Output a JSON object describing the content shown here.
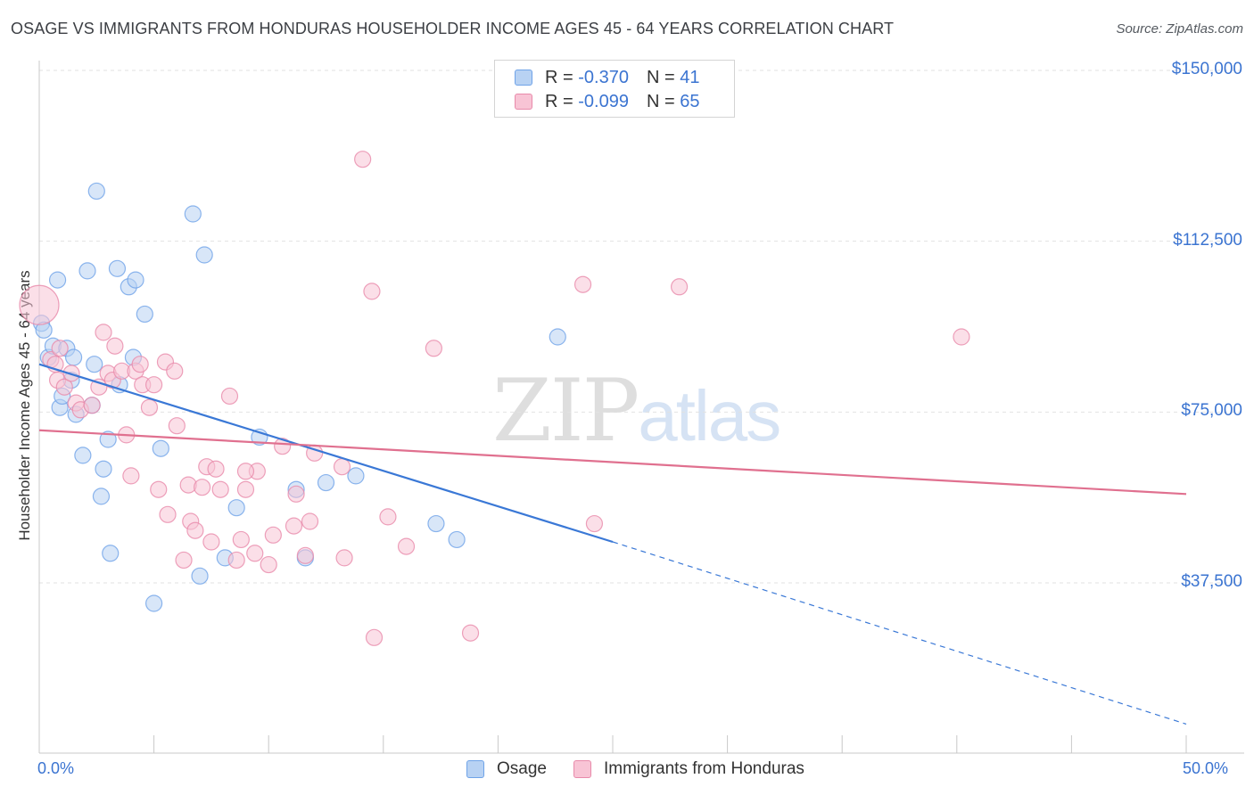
{
  "title": "OSAGE VS IMMIGRANTS FROM HONDURAS HOUSEHOLDER INCOME AGES 45 - 64 YEARS CORRELATION CHART",
  "source": "Source: ZipAtlas.com",
  "watermark": {
    "zip": "ZIP",
    "atlas": "atlas"
  },
  "legend": {
    "rows": [
      {
        "r_label": "R =",
        "r_value": "-0.370",
        "n_label": "N =",
        "n_value": "41",
        "color": "#6fa3e8",
        "fill": "#b8d2f3"
      },
      {
        "r_label": "R =",
        "r_value": "-0.099",
        "n_label": "N =",
        "n_value": "65",
        "color": "#e88aaa",
        "fill": "#f8c4d5"
      }
    ]
  },
  "bottom_legend": [
    "Osage",
    "Immigrants from Honduras"
  ],
  "chart_data": {
    "type": "scatter",
    "title": "OSAGE VS IMMIGRANTS FROM HONDURAS HOUSEHOLDER INCOME AGES 45 - 64 YEARS CORRELATION CHART",
    "xlabel": "",
    "ylabel": "Householder Income Ages 45 - 64 years",
    "xlim": [
      0,
      50
    ],
    "ylim": [
      0,
      155000
    ],
    "x_tick_labels": [
      "0.0%",
      "50.0%"
    ],
    "y_ticks": [
      37500,
      75000,
      112500,
      150000
    ],
    "y_tick_labels": [
      "$37,500",
      "$75,000",
      "$112,500",
      "$150,000"
    ],
    "grid": true,
    "legend_position": "top-center",
    "series": [
      {
        "name": "Osage",
        "color": "#6fa3e8",
        "fill": "#b8d2f3",
        "points": [
          [
            0.1,
            94500
          ],
          [
            0.2,
            93000
          ],
          [
            0.4,
            87000
          ],
          [
            0.6,
            89500
          ],
          [
            0.8,
            104000
          ],
          [
            0.9,
            76000
          ],
          [
            1.0,
            78500
          ],
          [
            1.2,
            89000
          ],
          [
            1.4,
            82000
          ],
          [
            1.5,
            87000
          ],
          [
            1.6,
            74500
          ],
          [
            1.9,
            65500
          ],
          [
            2.1,
            106000
          ],
          [
            2.3,
            76500
          ],
          [
            2.4,
            85500
          ],
          [
            2.5,
            123500
          ],
          [
            2.7,
            56500
          ],
          [
            2.8,
            62500
          ],
          [
            3.0,
            69000
          ],
          [
            3.1,
            44000
          ],
          [
            3.4,
            106500
          ],
          [
            3.5,
            81000
          ],
          [
            3.9,
            102500
          ],
          [
            4.1,
            87000
          ],
          [
            4.2,
            104000
          ],
          [
            4.6,
            96500
          ],
          [
            5.0,
            33000
          ],
          [
            5.3,
            67000
          ],
          [
            6.7,
            118500
          ],
          [
            7.0,
            39000
          ],
          [
            7.2,
            109500
          ],
          [
            8.1,
            43000
          ],
          [
            8.6,
            54000
          ],
          [
            9.6,
            69500
          ],
          [
            11.2,
            58000
          ],
          [
            11.6,
            43000
          ],
          [
            12.5,
            59500
          ],
          [
            13.8,
            61000
          ],
          [
            17.3,
            50500
          ],
          [
            18.2,
            47000
          ],
          [
            22.6,
            91500
          ]
        ],
        "trend": {
          "x": [
            0,
            25
          ],
          "y": [
            85500,
            46500
          ],
          "dashed_to": [
            50,
            6500
          ]
        }
      },
      {
        "name": "Immigrants from Honduras",
        "color": "#e88aaa",
        "fill": "#f8c4d5",
        "points": [
          [
            0.0,
            98500
          ],
          [
            0.5,
            86500
          ],
          [
            0.7,
            85500
          ],
          [
            0.8,
            82000
          ],
          [
            0.9,
            89000
          ],
          [
            1.1,
            80500
          ],
          [
            1.4,
            83500
          ],
          [
            1.6,
            77000
          ],
          [
            1.8,
            75500
          ],
          [
            2.3,
            76500
          ],
          [
            2.6,
            80500
          ],
          [
            2.8,
            92500
          ],
          [
            3.0,
            83500
          ],
          [
            3.2,
            82000
          ],
          [
            3.3,
            89500
          ],
          [
            3.6,
            84000
          ],
          [
            3.8,
            70000
          ],
          [
            4.0,
            61000
          ],
          [
            4.2,
            84000
          ],
          [
            4.4,
            85500
          ],
          [
            4.5,
            81000
          ],
          [
            4.8,
            76000
          ],
          [
            5.0,
            81000
          ],
          [
            5.2,
            58000
          ],
          [
            5.5,
            86000
          ],
          [
            5.6,
            52500
          ],
          [
            5.9,
            84000
          ],
          [
            6.0,
            72000
          ],
          [
            6.3,
            42500
          ],
          [
            6.5,
            59000
          ],
          [
            6.6,
            51000
          ],
          [
            6.8,
            49000
          ],
          [
            7.1,
            58500
          ],
          [
            7.3,
            63000
          ],
          [
            7.5,
            46500
          ],
          [
            7.7,
            62500
          ],
          [
            7.9,
            58000
          ],
          [
            8.3,
            78500
          ],
          [
            8.6,
            42500
          ],
          [
            8.8,
            47000
          ],
          [
            9.0,
            58000
          ],
          [
            9.4,
            44000
          ],
          [
            9.5,
            62000
          ],
          [
            10.0,
            41500
          ],
          [
            10.2,
            48000
          ],
          [
            10.6,
            67500
          ],
          [
            11.1,
            50000
          ],
          [
            11.2,
            57000
          ],
          [
            11.6,
            43500
          ],
          [
            11.8,
            51000
          ],
          [
            12.0,
            66000
          ],
          [
            13.2,
            63000
          ],
          [
            13.3,
            43000
          ],
          [
            14.1,
            130500
          ],
          [
            14.5,
            101500
          ],
          [
            14.6,
            25500
          ],
          [
            15.2,
            52000
          ],
          [
            16.0,
            45500
          ],
          [
            17.2,
            89000
          ],
          [
            18.8,
            26500
          ],
          [
            23.7,
            103000
          ],
          [
            24.2,
            50500
          ],
          [
            27.9,
            102500
          ],
          [
            40.2,
            91500
          ],
          [
            9.0,
            62000
          ]
        ],
        "trend": {
          "x": [
            0,
            50
          ],
          "y": [
            71000,
            57000
          ]
        }
      }
    ]
  }
}
